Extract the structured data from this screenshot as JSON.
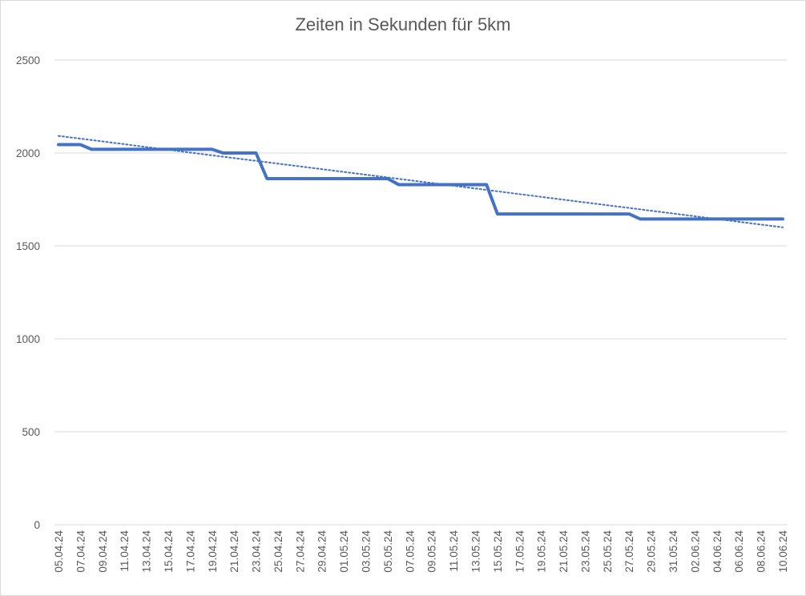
{
  "chart_data": {
    "type": "line",
    "title": "Zeiten in Sekunden für 5km",
    "xlabel": "",
    "ylabel": "",
    "ylim": [
      0,
      2500
    ],
    "y_ticks": [
      0,
      500,
      1000,
      1500,
      2000,
      2500
    ],
    "grid": true,
    "legend": "none",
    "x_tick_labels": [
      "05.04.24",
      "07.04.24",
      "09.04.24",
      "11.04.24",
      "13.04.24",
      "15.04.24",
      "17.04.24",
      "19.04.24",
      "21.04.24",
      "23.04.24",
      "25.04.24",
      "27.04.24",
      "29.04.24",
      "01.05.24",
      "03.05.24",
      "05.05.24",
      "07.05.24",
      "09.05.24",
      "11.05.24",
      "13.05.24",
      "15.05.24",
      "17.05.24",
      "19.05.24",
      "21.05.24",
      "23.05.24",
      "25.05.24",
      "27.05.24",
      "29.05.24",
      "31.05.24",
      "02.06.24",
      "04.06.24",
      "06.06.24",
      "08.06.24",
      "10.06.24"
    ],
    "series": [
      {
        "color": "#4472c4",
        "x": [
          "05.04.24",
          "06.04.24",
          "07.04.24",
          "08.04.24",
          "19.04.24",
          "20.04.24",
          "23.04.24",
          "24.04.24",
          "05.05.24",
          "06.05.24",
          "14.05.24",
          "15.05.24",
          "27.05.24",
          "28.05.24",
          "10.06.24"
        ],
        "values": [
          2045,
          2045,
          2045,
          2020,
          2020,
          2000,
          2000,
          1862,
          1862,
          1830,
          1830,
          1672,
          1672,
          1645,
          1645
        ]
      }
    ],
    "trendline": {
      "type": "linear",
      "style": "dotted",
      "color": "#4472c4",
      "x": [
        "05.04.24",
        "10.06.24"
      ],
      "values": [
        2092,
        1600
      ]
    }
  }
}
